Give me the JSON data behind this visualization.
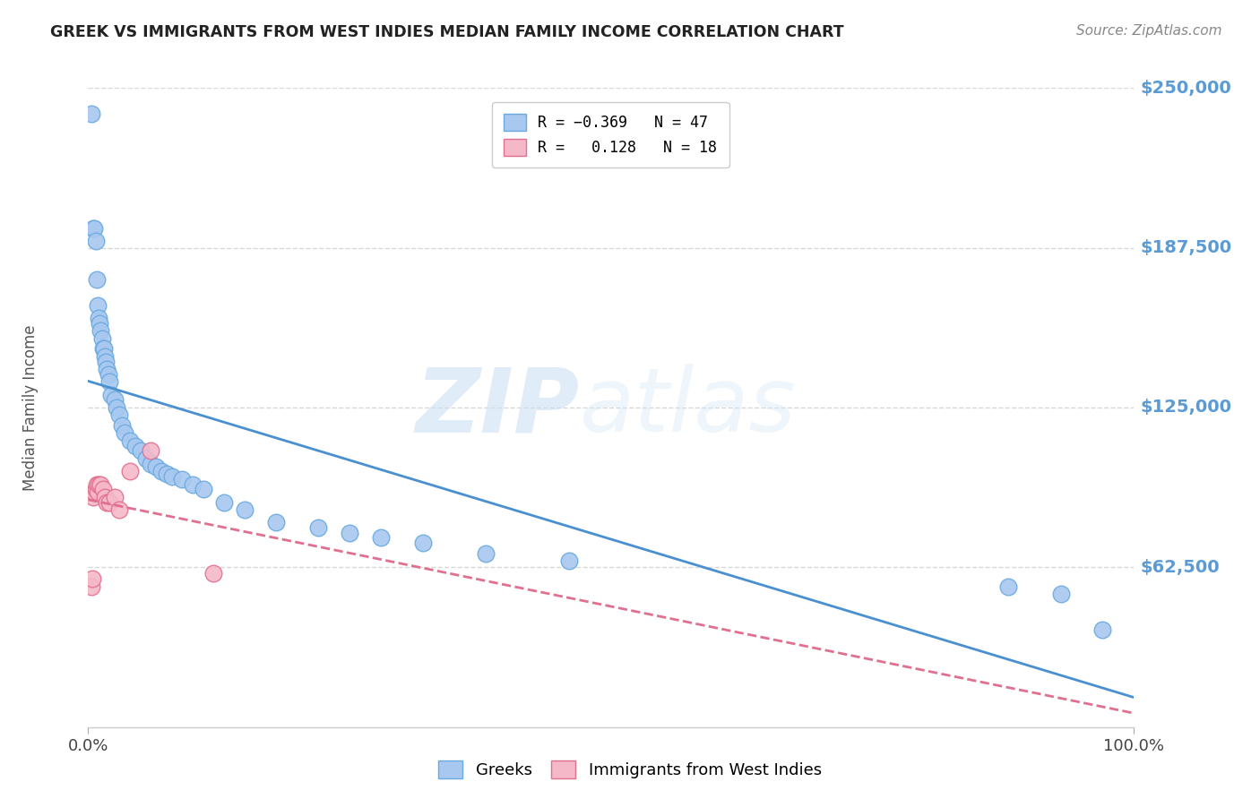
{
  "title": "GREEK VS IMMIGRANTS FROM WEST INDIES MEDIAN FAMILY INCOME CORRELATION CHART",
  "source": "Source: ZipAtlas.com",
  "ylabel": "Median Family Income",
  "xlim": [
    0,
    1.0
  ],
  "ylim": [
    0,
    250000
  ],
  "ytick_values": [
    62500,
    125000,
    187500,
    250000
  ],
  "ytick_labels": [
    "$62,500",
    "$125,000",
    "$187,500",
    "$250,000"
  ],
  "watermark_zip": "ZIP",
  "watermark_atlas": "atlas",
  "greeks_color": "#a8c8f0",
  "greeks_edge": "#6aaae0",
  "westindies_color": "#f5b8c8",
  "westindies_edge": "#e07090",
  "trendline_greeks_color": "#4a90d0",
  "trendline_westindies_color": "#e07090",
  "bg_color": "#ffffff",
  "grid_color": "#d8d8d8",
  "title_color": "#222222",
  "ytick_color": "#5b9bd5",
  "xtick_color": "#444444",
  "source_color": "#888888",
  "ylabel_color": "#555555",
  "greeks_x": [
    0.003,
    0.005,
    0.006,
    0.007,
    0.008,
    0.009,
    0.01,
    0.011,
    0.012,
    0.013,
    0.014,
    0.015,
    0.016,
    0.017,
    0.018,
    0.019,
    0.02,
    0.022,
    0.025,
    0.027,
    0.03,
    0.032,
    0.035,
    0.04,
    0.045,
    0.05,
    0.055,
    0.06,
    0.065,
    0.07,
    0.075,
    0.08,
    0.09,
    0.1,
    0.11,
    0.13,
    0.15,
    0.18,
    0.22,
    0.25,
    0.28,
    0.32,
    0.38,
    0.46,
    0.88,
    0.93,
    0.97
  ],
  "greeks_y": [
    240000,
    195000,
    195000,
    190000,
    175000,
    165000,
    160000,
    158000,
    155000,
    152000,
    148000,
    148000,
    145000,
    143000,
    140000,
    138000,
    135000,
    130000,
    128000,
    125000,
    122000,
    118000,
    115000,
    112000,
    110000,
    108000,
    105000,
    103000,
    102000,
    100000,
    99000,
    98000,
    97000,
    95000,
    93000,
    88000,
    85000,
    80000,
    78000,
    76000,
    74000,
    72000,
    68000,
    65000,
    55000,
    52000,
    38000
  ],
  "westindies_x": [
    0.003,
    0.004,
    0.005,
    0.006,
    0.007,
    0.008,
    0.009,
    0.01,
    0.012,
    0.014,
    0.016,
    0.018,
    0.02,
    0.025,
    0.03,
    0.04,
    0.06,
    0.12
  ],
  "westindies_y": [
    55000,
    58000,
    90000,
    92000,
    93000,
    95000,
    92000,
    95000,
    95000,
    93000,
    90000,
    88000,
    88000,
    90000,
    85000,
    100000,
    108000,
    60000
  ]
}
